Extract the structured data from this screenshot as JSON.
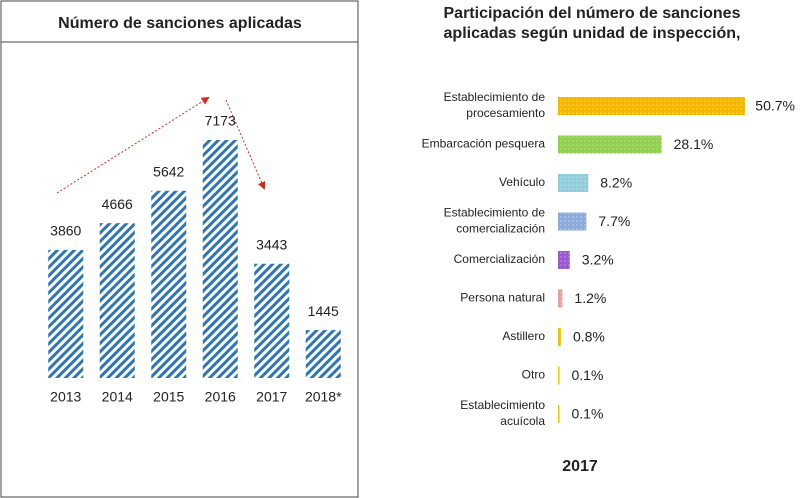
{
  "chart_data": [
    {
      "type": "bar",
      "title": "Número de sanciones aplicadas",
      "categories": [
        "2013",
        "2014",
        "2015",
        "2016",
        "2017",
        "2018*"
      ],
      "values": [
        3860,
        4666,
        5642,
        7173,
        3443,
        1445
      ],
      "color": "#2e75b6"
    },
    {
      "type": "hbar",
      "title": "Participación del número de sanciones\naplicadas según unidad de inspección,",
      "categories": [
        "Establecimiento de\nprocesamiento",
        "Embarcación pesquera",
        "Vehículo",
        "Establecimiento de\ncomercialización",
        "Comercialización",
        "Persona natural",
        "Astillero",
        "Otro",
        "Establecimiento\nacuícola"
      ],
      "values": [
        50.7,
        28.1,
        8.2,
        7.7,
        3.2,
        1.2,
        0.8,
        0.1,
        0.1
      ],
      "value_labels": [
        "50.7%",
        "28.1%",
        "8.2%",
        "7.7%",
        "3.2%",
        "1.2%",
        "0.8%",
        "0.1%",
        "0.1%"
      ],
      "colors": [
        "#f5b800",
        "#92d050",
        "#92cddc",
        "#8eaadb",
        "#9b59d0",
        "#e6a0a0",
        "#f5c000",
        "#f5c000",
        "#f5c000"
      ],
      "footer": "2017"
    }
  ]
}
